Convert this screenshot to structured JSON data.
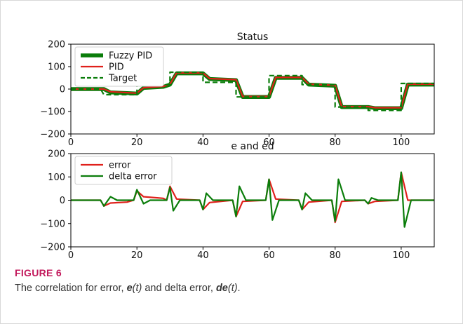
{
  "chart_data": [
    {
      "type": "line",
      "title": "Status",
      "xlim": [
        0,
        110
      ],
      "ylim": [
        -200,
        200
      ],
      "xticks": [
        0,
        20,
        40,
        60,
        80,
        100
      ],
      "yticks": [
        -200,
        -100,
        0,
        100,
        200
      ],
      "legend": "top-left",
      "grid": false,
      "series": [
        {
          "name": "Fuzzy PID",
          "color": "#0a7d0a",
          "style": "solid-thick",
          "x": [
            0,
            10,
            12,
            17,
            20,
            22,
            28,
            30,
            32,
            40,
            42,
            50,
            52,
            60,
            62,
            70,
            72,
            80,
            82,
            90,
            92,
            100,
            102,
            110
          ],
          "y": [
            0,
            0,
            -15,
            -18,
            -20,
            5,
            10,
            20,
            70,
            70,
            45,
            40,
            -35,
            -35,
            50,
            50,
            20,
            15,
            -80,
            -80,
            -85,
            -85,
            20,
            20
          ]
        },
        {
          "name": "PID",
          "color": "#e0201b",
          "style": "solid",
          "x": [
            0,
            10,
            12,
            17,
            20,
            22,
            28,
            30,
            32,
            40,
            42,
            50,
            52,
            60,
            62,
            70,
            72,
            80,
            82,
            90,
            92,
            100,
            102,
            110
          ],
          "y": [
            0,
            0,
            -12,
            -16,
            -18,
            6,
            12,
            22,
            72,
            72,
            47,
            42,
            -33,
            -33,
            52,
            52,
            22,
            17,
            -78,
            -78,
            -83,
            -83,
            22,
            22
          ]
        },
        {
          "name": "Target",
          "color": "#0a7d0a",
          "style": "dashed",
          "x": [
            0,
            9,
            10,
            20,
            20,
            30,
            30,
            40,
            40,
            50,
            50,
            60,
            60,
            70,
            70,
            80,
            80,
            90,
            90,
            100,
            100,
            110
          ],
          "y": [
            0,
            0,
            -25,
            -25,
            20,
            20,
            75,
            75,
            30,
            30,
            -35,
            -35,
            60,
            60,
            20,
            20,
            -80,
            -80,
            -95,
            -95,
            25,
            25
          ]
        }
      ]
    },
    {
      "type": "line",
      "title": "e and ed",
      "xlim": [
        0,
        110
      ],
      "ylim": [
        -200,
        200
      ],
      "xticks": [
        0,
        20,
        40,
        60,
        80,
        100
      ],
      "yticks": [
        -200,
        -100,
        0,
        100,
        200
      ],
      "legend": "top-left",
      "grid": false,
      "series": [
        {
          "name": "error",
          "color": "#e0201b",
          "style": "solid",
          "x": [
            0,
            9,
            10,
            12,
            17,
            19,
            20,
            22,
            28,
            29,
            30,
            32,
            39,
            40,
            42,
            49,
            50,
            52,
            59,
            60,
            62,
            69,
            70,
            72,
            79,
            80,
            82,
            89,
            90,
            92,
            99,
            100,
            102,
            110
          ],
          "y": [
            0,
            0,
            -25,
            -12,
            -8,
            0,
            40,
            15,
            8,
            0,
            60,
            5,
            0,
            -40,
            -10,
            0,
            -70,
            -5,
            0,
            90,
            5,
            0,
            -40,
            -8,
            0,
            -95,
            -5,
            0,
            -15,
            -5,
            0,
            120,
            0,
            0
          ]
        },
        {
          "name": "delta error",
          "color": "#0a7d0a",
          "style": "solid",
          "x": [
            0,
            9,
            10,
            12,
            14,
            17,
            19,
            20,
            22,
            24,
            29,
            30,
            31,
            33,
            39,
            40,
            41,
            43,
            49,
            50,
            51,
            53,
            59,
            60,
            61,
            63,
            69,
            70,
            71,
            73,
            79,
            80,
            81,
            83,
            89,
            90,
            91,
            93,
            99,
            100,
            101,
            103,
            110
          ],
          "y": [
            0,
            0,
            -25,
            15,
            0,
            0,
            0,
            45,
            -15,
            0,
            0,
            55,
            -45,
            0,
            0,
            -40,
            30,
            0,
            0,
            -70,
            60,
            0,
            0,
            90,
            -85,
            0,
            0,
            -40,
            30,
            0,
            0,
            -90,
            90,
            0,
            0,
            -15,
            10,
            0,
            0,
            120,
            -115,
            0,
            0
          ]
        }
      ]
    }
  ],
  "caption": {
    "label": "FIGURE 6",
    "prefix": "The correlation for error, ",
    "e_symbol": "e",
    "e_arg": "(t)",
    "middle": " and delta error, ",
    "de_symbol": "de",
    "de_arg": "(t)",
    "suffix": "."
  }
}
